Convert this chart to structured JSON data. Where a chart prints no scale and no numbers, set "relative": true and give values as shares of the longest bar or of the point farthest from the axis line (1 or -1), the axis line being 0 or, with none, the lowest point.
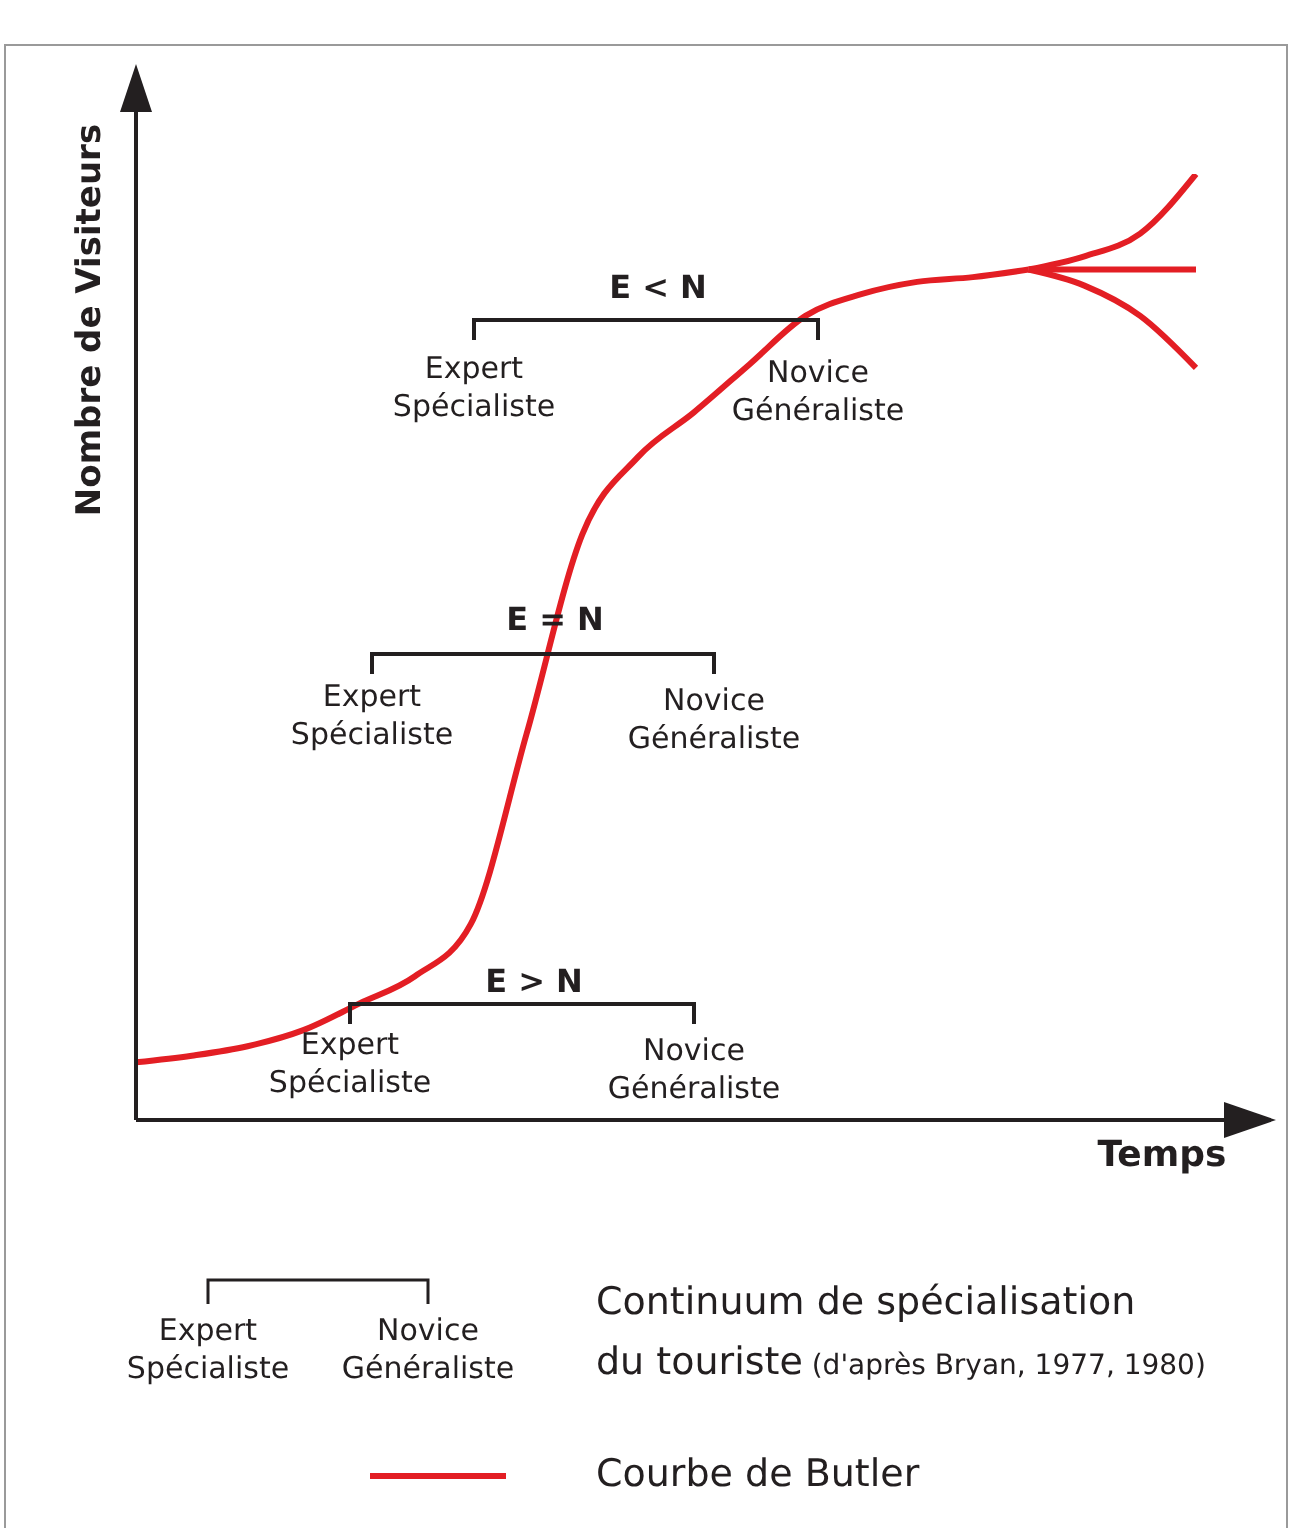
{
  "chart_data": {
    "type": "line",
    "relative": true,
    "xlabel": "Temps",
    "ylabel": "Nombre de Visiteurs",
    "legend": "bottom",
    "categories": [
      null,
      null,
      null,
      null,
      null,
      null,
      null,
      null,
      null,
      null,
      null,
      null,
      null,
      null,
      null,
      null,
      null,
      null,
      null,
      null
    ],
    "series": [
      {
        "name": "Courbe de Butler",
        "color": "#e31e24",
        "values": [
          0.061,
          0.068,
          0.078,
          0.095,
          0.123,
          0.152,
          0.207,
          0.408,
          0.619,
          0.701,
          0.748,
          0.799,
          0.85,
          0.873,
          0.886,
          0.891,
          0.899,
          null,
          null,
          null
        ]
      },
      {
        "color": "#e31e24",
        "values": [
          null,
          null,
          null,
          null,
          null,
          null,
          null,
          null,
          null,
          null,
          null,
          null,
          null,
          null,
          null,
          null,
          0.899,
          0.913,
          0.937,
          1
        ]
      },
      {
        "color": "#e31e24",
        "values": [
          null,
          null,
          null,
          null,
          null,
          null,
          null,
          null,
          null,
          null,
          null,
          null,
          null,
          null,
          null,
          null,
          0.899,
          0.899,
          0.899,
          0.899
        ]
      },
      {
        "color": "#e31e24",
        "values": [
          null,
          null,
          null,
          null,
          null,
          null,
          null,
          null,
          null,
          null,
          null,
          null,
          null,
          null,
          null,
          null,
          0.899,
          0.882,
          0.85,
          0.795
        ]
      }
    ],
    "annotations": [
      "E < N",
      "Expert\nSpécialiste",
      "Novice\nGénéraliste",
      "E = N",
      "Expert\nSpécialiste",
      "Novice\nGénéraliste",
      "E > N",
      "Expert\nSpécialiste",
      "Novice\nGénéraliste",
      "Expert\nSpécialiste",
      "Novice\nGénéraliste",
      "Continuum de spécialisation\ndu touriste",
      "(d'après Bryan, 1977, 1980)"
    ]
  }
}
